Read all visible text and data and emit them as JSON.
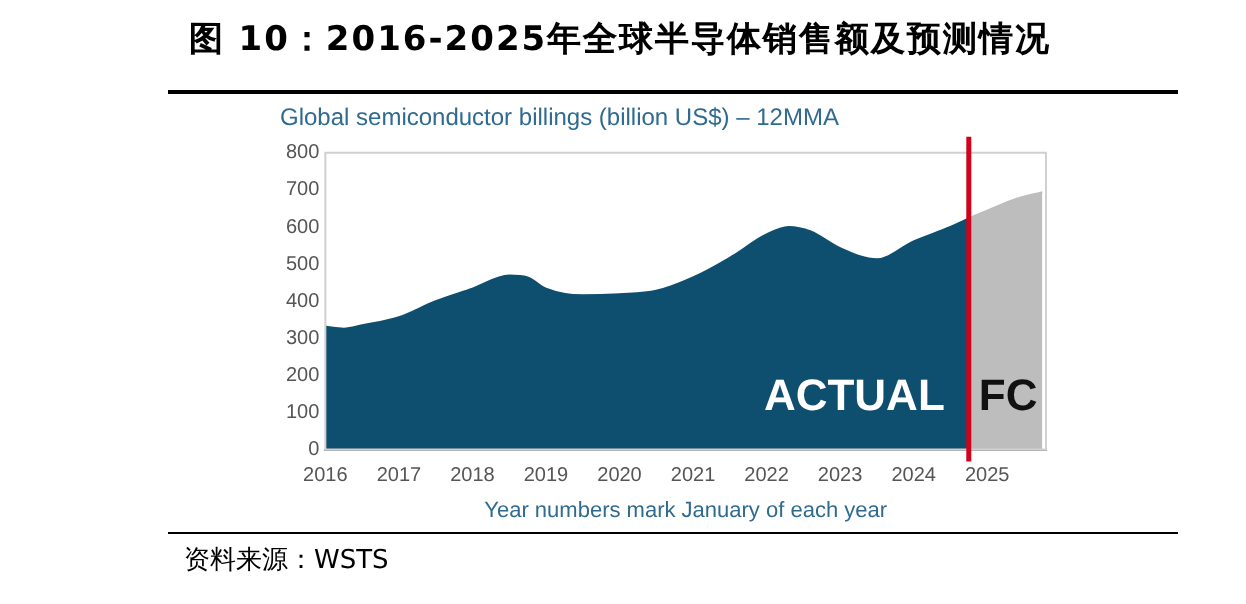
{
  "chart_data": {
    "type": "area",
    "title": "图 10：2016-2025年全球半导体销售额及预测情况",
    "subtitle": "Global semiconductor billings (billion US$) – 12MMA",
    "xlabel": "Year numbers mark January of each year",
    "series": [
      {
        "color": "#0e4f6f",
        "x": [
          2016,
          2016.25,
          2016.5,
          2017,
          2017.5,
          2018,
          2018.5,
          2018.75,
          2019,
          2019.5,
          2020,
          2020.5,
          2021,
          2021.5,
          2022,
          2022.3,
          2022.6,
          2023,
          2023.5,
          2024,
          2024.5,
          2024.75
        ],
        "values": [
          331,
          326,
          335,
          357,
          400,
          434,
          469,
          464,
          434,
          416,
          419,
          428,
          464,
          517,
          580,
          600,
          588,
          543,
          513,
          561,
          600,
          623
        ]
      },
      {
        "color": "#bdbdbd",
        "x": [
          2024.75,
          2025,
          2025.4,
          2025.75
        ],
        "values": [
          623,
          644,
          676,
          694
        ]
      }
    ],
    "xlim": [
      2016,
      2025.8
    ],
    "xticks": [
      2016,
      2017,
      2018,
      2019,
      2020,
      2021,
      2022,
      2023,
      2024,
      2025
    ],
    "ylim": [
      0,
      800
    ],
    "yticks": [
      0,
      100,
      200,
      300,
      400,
      500,
      600,
      700,
      800
    ],
    "grid": false,
    "legend": false,
    "ref_lines": [
      {
        "axis": "x",
        "value": 2024.75,
        "color": "#d0021b"
      }
    ],
    "annotations": [
      "ACTUAL",
      "FC",
      "资料来源：WSTS"
    ]
  }
}
